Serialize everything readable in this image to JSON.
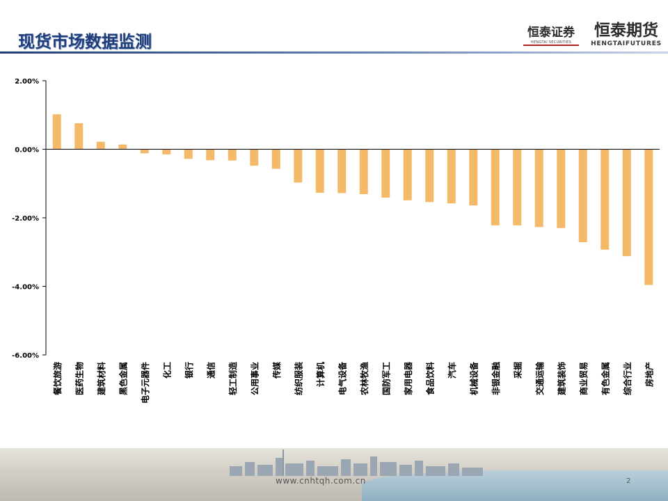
{
  "slide": {
    "title": "现货市场数据监测",
    "logo_securities_cn": "恒泰证券",
    "logo_securities_en": "HENGTAI SECURITIES",
    "logo_futures_cn": "恒泰期货",
    "logo_futures_en": "HENGTAIFUTURES",
    "footer_url": "www.cnhtqh.com.cn",
    "page_number": "2"
  },
  "colors": {
    "bar": "#F5B96A",
    "title": "#1f3d7a",
    "axis": "#000000"
  },
  "chart_data": {
    "type": "bar",
    "title": "",
    "xlabel": "",
    "ylabel": "",
    "ylim": [
      -6,
      2
    ],
    "y_ticks": [
      2,
      0,
      -2,
      -4,
      -6
    ],
    "y_tick_labels": [
      "2.00%",
      "0.00%",
      "-2.00%",
      "-4.00%",
      "-6.00%"
    ],
    "grid": false,
    "legend": "none",
    "categories": [
      "餐饮旅游",
      "医药生物",
      "建筑材料",
      "黑色金属",
      "电子元器件",
      "化工",
      "银行",
      "通信",
      "轻工制造",
      "公用事业",
      "传媒",
      "纺织服装",
      "计算机",
      "电气设备",
      "农林牧渔",
      "国防军工",
      "家用电器",
      "食品饮料",
      "汽车",
      "机械设备",
      "非银金融",
      "采掘",
      "交通运输",
      "建筑装饰",
      "商业贸易",
      "有色金属",
      "综合行业",
      "房地产"
    ],
    "series": [
      {
        "values": [
          1.02,
          0.76,
          0.22,
          0.14,
          -0.12,
          -0.15,
          -0.28,
          -0.32,
          -0.33,
          -0.48,
          -0.57,
          -0.97,
          -1.27,
          -1.28,
          -1.31,
          -1.41,
          -1.49,
          -1.54,
          -1.58,
          -1.64,
          -2.22,
          -2.22,
          -2.27,
          -2.3,
          -2.71,
          -2.93,
          -3.12,
          -3.96
        ]
      }
    ]
  }
}
